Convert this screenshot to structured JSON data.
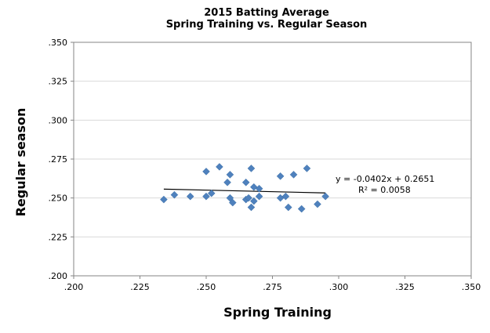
{
  "chart_data": {
    "type": "scatter",
    "title": "2015 Batting Average",
    "subtitle": "Spring Training vs. Regular Season",
    "xlabel": "Spring Training",
    "ylabel": "Regular season",
    "xlim": [
      0.2,
      0.35
    ],
    "ylim": [
      0.2,
      0.35
    ],
    "x_ticks": [
      ".200",
      ".225",
      ".250",
      ".275",
      ".300",
      ".325",
      ".350"
    ],
    "y_ticks": [
      ".350",
      ".325",
      ".300",
      ".275",
      ".250",
      ".225",
      ".200"
    ],
    "grid": true,
    "legend": "none",
    "marker_color": "#4F81BD",
    "trendline": {
      "slope": -0.0402,
      "intercept": 0.2651,
      "equation_label": "y = -0.0402x + 0.2651",
      "r2_label": "R² = 0.0058"
    },
    "points": [
      {
        "x": 0.234,
        "y": 0.249
      },
      {
        "x": 0.238,
        "y": 0.252
      },
      {
        "x": 0.244,
        "y": 0.251
      },
      {
        "x": 0.25,
        "y": 0.251
      },
      {
        "x": 0.25,
        "y": 0.267
      },
      {
        "x": 0.252,
        "y": 0.253
      },
      {
        "x": 0.255,
        "y": 0.27
      },
      {
        "x": 0.258,
        "y": 0.26
      },
      {
        "x": 0.259,
        "y": 0.265
      },
      {
        "x": 0.259,
        "y": 0.25
      },
      {
        "x": 0.26,
        "y": 0.247
      },
      {
        "x": 0.265,
        "y": 0.249
      },
      {
        "x": 0.265,
        "y": 0.26
      },
      {
        "x": 0.266,
        "y": 0.25
      },
      {
        "x": 0.267,
        "y": 0.269
      },
      {
        "x": 0.267,
        "y": 0.244
      },
      {
        "x": 0.268,
        "y": 0.257
      },
      {
        "x": 0.268,
        "y": 0.248
      },
      {
        "x": 0.27,
        "y": 0.251
      },
      {
        "x": 0.27,
        "y": 0.256
      },
      {
        "x": 0.278,
        "y": 0.264
      },
      {
        "x": 0.278,
        "y": 0.25
      },
      {
        "x": 0.28,
        "y": 0.251
      },
      {
        "x": 0.281,
        "y": 0.244
      },
      {
        "x": 0.283,
        "y": 0.265
      },
      {
        "x": 0.286,
        "y": 0.243
      },
      {
        "x": 0.288,
        "y": 0.269
      },
      {
        "x": 0.292,
        "y": 0.246
      },
      {
        "x": 0.295,
        "y": 0.251
      }
    ]
  }
}
